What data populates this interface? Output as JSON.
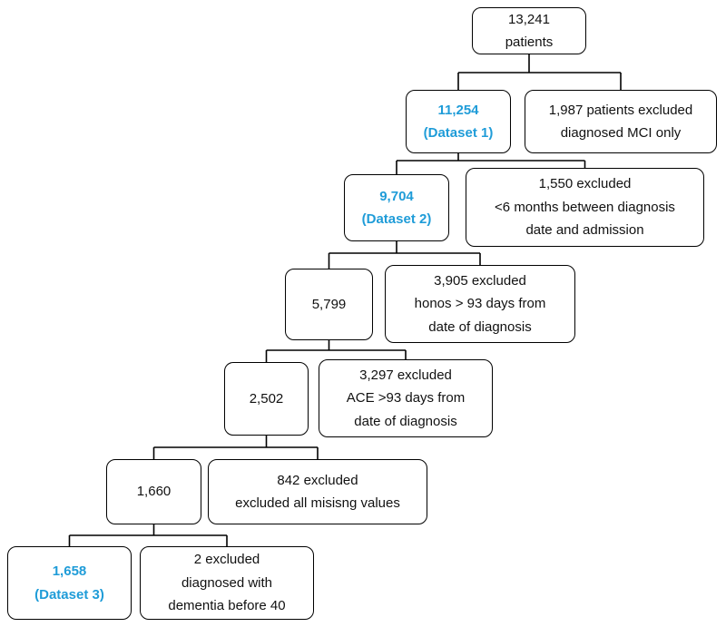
{
  "styles": {
    "accent_color": "#1f9cd8",
    "line_color": "#000000",
    "border_color": "#000000"
  },
  "boxes": {
    "total": {
      "line1": "13,241",
      "line2": "patients"
    },
    "dataset1": {
      "line1": "11,254",
      "line2": "(Dataset 1)"
    },
    "excl_mci": {
      "line1": "1,987 patients excluded",
      "line2": "diagnosed MCI only"
    },
    "dataset2": {
      "line1": "9,704",
      "line2": "(Dataset 2)"
    },
    "excl_6mo": {
      "line1": "1,550 excluded",
      "line2": "<6 months between diagnosis",
      "line3": "date and admission"
    },
    "n5799": {
      "line1": "5,799"
    },
    "excl_honos": {
      "line1": "3,905 excluded",
      "line2": "honos > 93 days from",
      "line3": "date of diagnosis"
    },
    "n2502": {
      "line1": "2,502"
    },
    "excl_ace": {
      "line1": "3,297 excluded",
      "line2": "ACE >93 days from",
      "line3": "date of diagnosis"
    },
    "n1660": {
      "line1": "1,660"
    },
    "excl_missing": {
      "line1": "842 excluded",
      "line2": "excluded all misisng values"
    },
    "dataset3": {
      "line1": "1,658",
      "line2": "(Dataset 3)"
    },
    "excl_under40": {
      "line1": "2 excluded",
      "line2": "diagnosed with",
      "line3": "dementia before 40"
    }
  },
  "edges": [
    {
      "parent": "node-total-patients",
      "left": "node-dataset1",
      "right": "node-excluded-mci"
    },
    {
      "parent": "node-dataset1",
      "left": "node-dataset2",
      "right": "node-excluded-6months"
    },
    {
      "parent": "node-dataset2",
      "left": "node-5799",
      "right": "node-excluded-honos"
    },
    {
      "parent": "node-5799",
      "left": "node-2502",
      "right": "node-excluded-ace"
    },
    {
      "parent": "node-2502",
      "left": "node-1660",
      "right": "node-excluded-missing"
    },
    {
      "parent": "node-1660",
      "left": "node-dataset3",
      "right": "node-excluded-under40"
    }
  ]
}
